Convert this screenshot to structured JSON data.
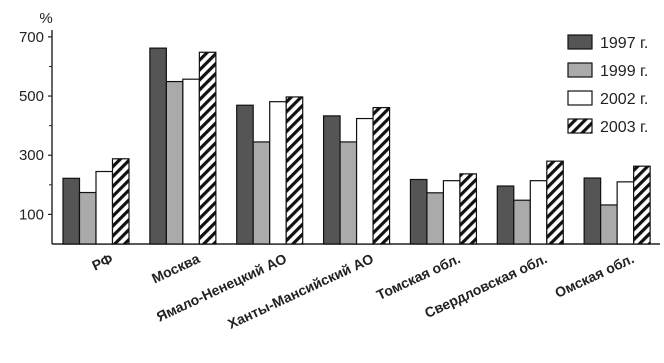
{
  "chart_data": {
    "type": "bar",
    "y_unit": "%",
    "ylim": [
      0,
      730
    ],
    "yticks": [
      100,
      300,
      500,
      700
    ],
    "grid": false,
    "legend_position": "top-right",
    "categories": [
      "РФ",
      "Москва",
      "Ямало-Ненецкий АО",
      "Ханты-Мансийский АО",
      "Томская обл.",
      "Свердловская обл.",
      "Омская обл."
    ],
    "series": [
      {
        "name": "1997 г.",
        "fill": "#555555",
        "pattern": "solid",
        "values": [
          222,
          662,
          469,
          433,
          218,
          196,
          223
        ]
      },
      {
        "name": "1999 г.",
        "fill": "#aaaaaa",
        "pattern": "solid",
        "values": [
          174,
          549,
          345,
          345,
          173,
          148,
          132
        ]
      },
      {
        "name": "2002 г.",
        "fill": "#ffffff",
        "pattern": "solid",
        "values": [
          245,
          557,
          481,
          424,
          214,
          214,
          210
        ]
      },
      {
        "name": "2003 г.",
        "fill": "#ffffff",
        "pattern": "diagonal-hatch",
        "values": [
          288,
          648,
          497,
          461,
          237,
          280,
          263
        ]
      }
    ]
  }
}
